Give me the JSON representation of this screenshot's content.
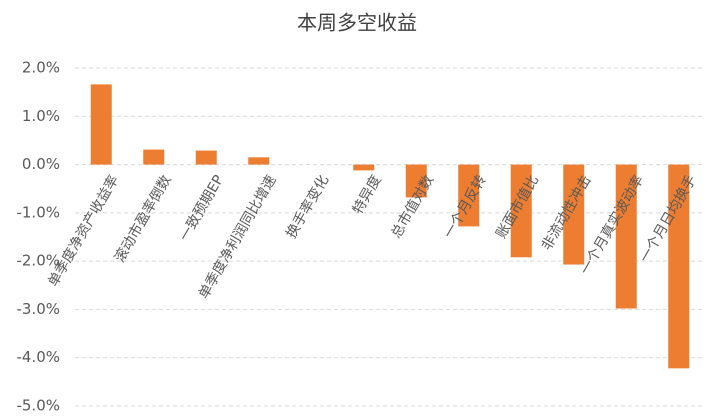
{
  "chart_data": {
    "type": "bar",
    "title": "本周多空收益",
    "categories": [
      "单季度净资产收益率",
      "滚动市盈率倒数",
      "一致预期EP",
      "单季度净利润同比增速",
      "换手率变化",
      "特异度",
      "总市值对数",
      "一个月反转",
      "账面市值比",
      "非流动性冲击",
      "一个月真实波动率",
      "一个月日均换手"
    ],
    "values": [
      1.66,
      0.31,
      0.29,
      0.15,
      0.0,
      -0.12,
      -0.68,
      -1.28,
      -1.92,
      -2.07,
      -2.98,
      -4.22
    ],
    "color": "#ed7d31",
    "ylim": [
      -5.0,
      2.0
    ],
    "yticks": [
      {
        "value": -5.0,
        "label": "-5.0%"
      },
      {
        "value": -4.0,
        "label": "-4.0%"
      },
      {
        "value": -3.0,
        "label": "-3.0%"
      },
      {
        "value": -2.0,
        "label": "-2.0%"
      },
      {
        "value": -1.0,
        "label": "-1.0%"
      },
      {
        "value": 0.0,
        "label": "0.0%"
      },
      {
        "value": 1.0,
        "label": "1.0%"
      },
      {
        "value": 2.0,
        "label": "2.0%"
      }
    ],
    "grid": true
  }
}
